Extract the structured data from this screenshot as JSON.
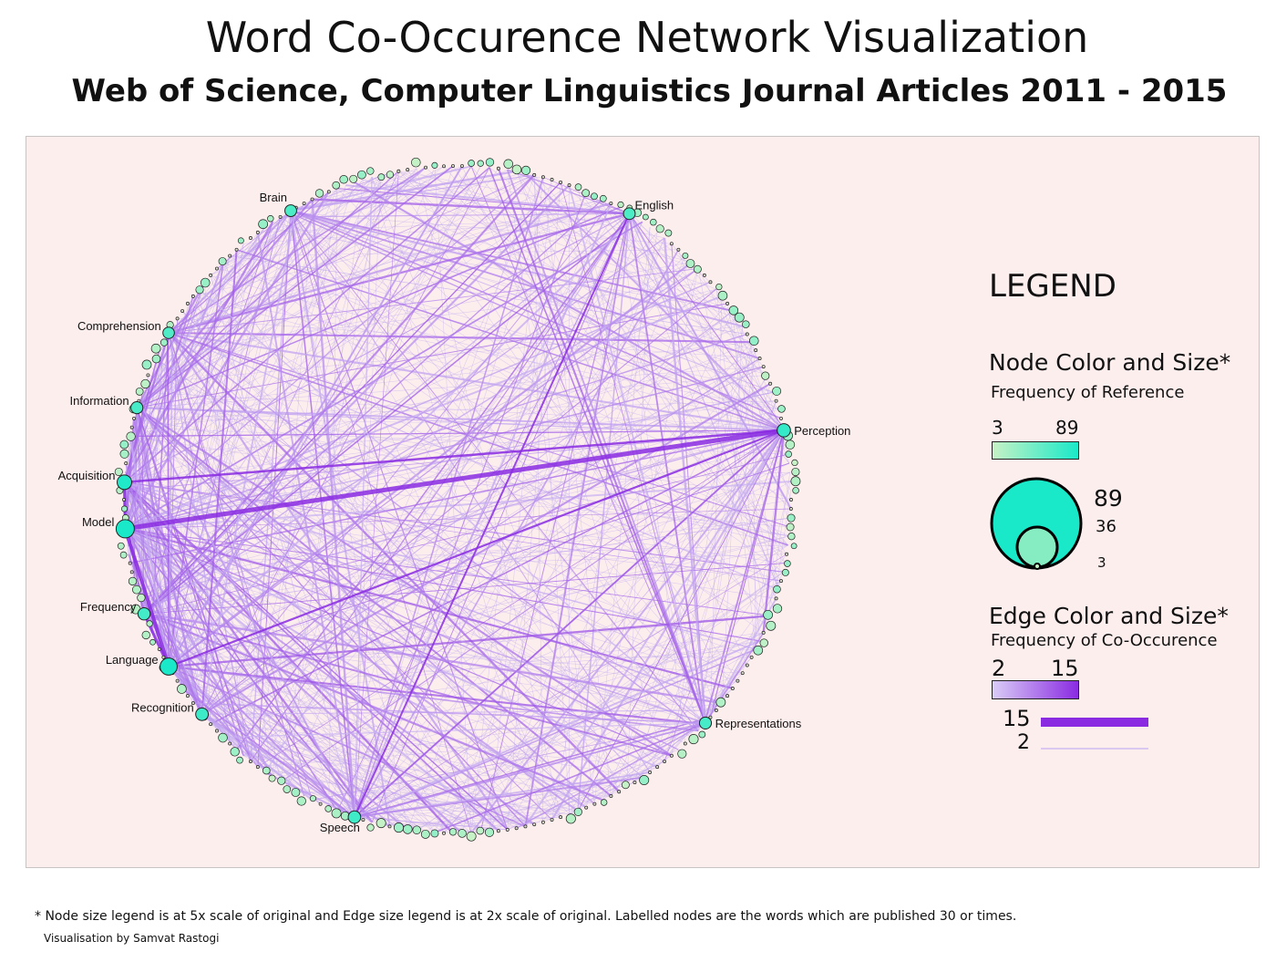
{
  "title": "Word Co-Occurence Network Visualization",
  "subtitle": "Web of Science, Computer Linguistics Journal Articles 2011 - 2015",
  "colors": {
    "background": "#fdeeee",
    "node_low": "#c6f2c6",
    "node_high": "#19e9c8",
    "edge_low": "#d9ccf6",
    "edge_high": "#8a2be2"
  },
  "network": {
    "layout": "circle",
    "labelled_nodes": [
      {
        "id": "Brain",
        "label": "Brain",
        "angle": -120,
        "freq": 38
      },
      {
        "id": "English",
        "label": "English",
        "angle": -59,
        "freq": 38
      },
      {
        "id": "Comprehension",
        "label": "Comprehension",
        "angle": -150,
        "freq": 36
      },
      {
        "id": "Information",
        "label": "Information",
        "angle": -164,
        "freq": 40
      },
      {
        "id": "Acquisition",
        "label": "Acquisition",
        "angle": -177,
        "freq": 60
      },
      {
        "id": "Model",
        "label": "Model",
        "angle": 175,
        "freq": 89
      },
      {
        "id": "Perception",
        "label": "Perception",
        "angle": -12,
        "freq": 50
      },
      {
        "id": "Frequency",
        "label": "Frequency",
        "angle": 160,
        "freq": 42
      },
      {
        "id": "Language",
        "label": "Language",
        "angle": 150,
        "freq": 80
      },
      {
        "id": "Recognition",
        "label": "Recognition",
        "angle": 140,
        "freq": 45
      },
      {
        "id": "Speech",
        "label": "Speech",
        "angle": 108,
        "freq": 44
      },
      {
        "id": "Representations",
        "label": "Representations",
        "angle": 42,
        "freq": 40
      }
    ]
  },
  "legend": {
    "title": "LEGEND",
    "node": {
      "heading": "Node Color and Size*",
      "subheading": "Frequency of Reference",
      "color_min": "3",
      "color_max": "89",
      "size_values": [
        "89",
        "36",
        "3"
      ]
    },
    "edge": {
      "heading": "Edge Color and Size*",
      "subheading": "Frequency of Co-Occurence",
      "color_min": "2",
      "color_max": "15",
      "width_max": "15",
      "width_min": "2"
    }
  },
  "footnote": "* Node size legend is at 5x scale of original and Edge size legend is at 2x scale of original. Labelled nodes are the words which are published 30 or times.",
  "credit": "Visualisation by Samvat Rastogi"
}
